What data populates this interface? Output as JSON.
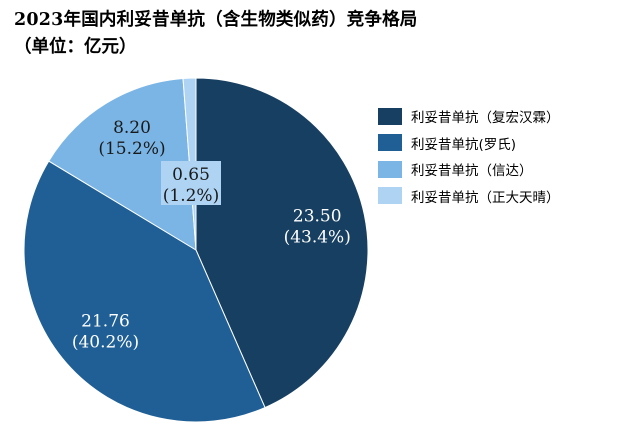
{
  "chart_data": {
    "type": "pie",
    "title": "2023年国内利妥昔单抗（含生物类似药）竞争格局",
    "subtitle": "（单位：亿元）",
    "slices": [
      {
        "name": "利妥昔单抗（复宏汉霖）",
        "value": 23.5,
        "percent": 43.4,
        "value_label": "23.50",
        "percent_label": "(43.4%)",
        "color": "#173f61",
        "text_color": "#ffffff"
      },
      {
        "name": "利妥昔单抗(罗氏)",
        "value": 21.76,
        "percent": 40.2,
        "value_label": "21.76",
        "percent_label": "(40.2%)",
        "color": "#1f5f95",
        "text_color": "#ffffff"
      },
      {
        "name": "利妥昔单抗（信达）",
        "value": 8.2,
        "percent": 15.2,
        "value_label": "8.20",
        "percent_label": "(15.2%)",
        "color": "#7ab5e6",
        "text_color": "#1a1a1a"
      },
      {
        "name": "利妥昔单抗（正大天晴）",
        "value": 0.65,
        "percent": 1.2,
        "value_label": "0.65",
        "percent_label": "(1.2%)",
        "color": "#aed3f3",
        "text_color": "#1a1a1a"
      }
    ],
    "legend_position": "right"
  }
}
